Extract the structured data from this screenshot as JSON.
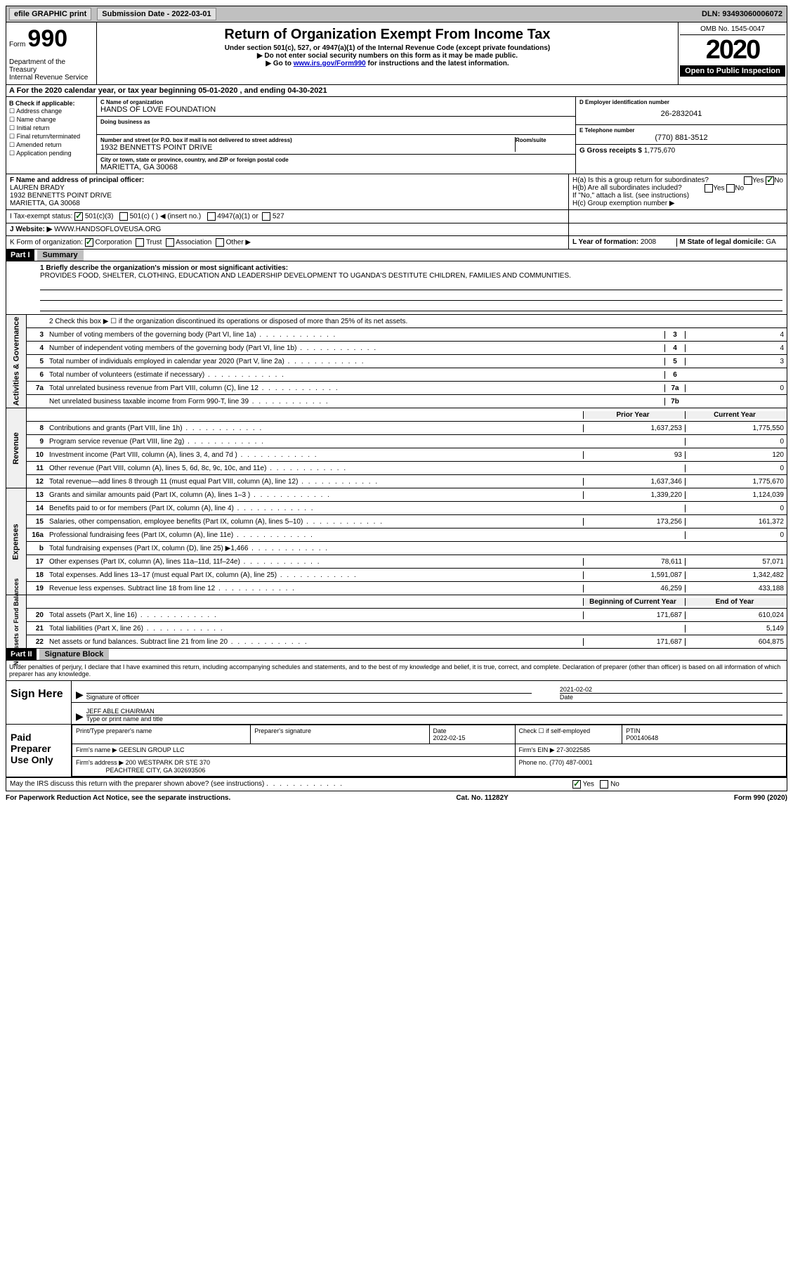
{
  "topbar": {
    "efile": "efile GRAPHIC print",
    "submission_label": "Submission Date - 2022-03-01",
    "dln": "DLN: 93493060006072"
  },
  "header": {
    "form_prefix": "Form",
    "form_number": "990",
    "dept": "Department of the Treasury\nInternal Revenue Service",
    "title": "Return of Organization Exempt From Income Tax",
    "sub1": "Under section 501(c), 527, or 4947(a)(1) of the Internal Revenue Code (except private foundations)",
    "sub2": "▶ Do not enter social security numbers on this form as it may be made public.",
    "sub3_pre": "▶ Go to ",
    "sub3_link": "www.irs.gov/Form990",
    "sub3_post": " for instructions and the latest information.",
    "omb": "OMB No. 1545-0047",
    "year": "2020",
    "open_inspect": "Open to Public Inspection"
  },
  "tax_year": "A For the 2020 calendar year, or tax year beginning 05-01-2020    , and ending 04-30-2021",
  "box_b": {
    "label": "B Check if applicable:",
    "items": [
      "Address change",
      "Name change",
      "Initial return",
      "Final return/terminated",
      "Amended return",
      "Application pending"
    ]
  },
  "c": {
    "label": "C Name of organization",
    "name": "HANDS OF LOVE FOUNDATION",
    "dba_label": "Doing business as",
    "addr_label": "Number and street (or P.O. box if mail is not delivered to street address)",
    "room_label": "Room/suite",
    "addr": "1932 BENNETTS POINT DRIVE",
    "city_label": "City or town, state or province, country, and ZIP or foreign postal code",
    "city": "MARIETTA, GA  30068"
  },
  "d": {
    "label": "D Employer identification number",
    "ein": "26-2832041"
  },
  "e": {
    "label": "E Telephone number",
    "phone": "(770) 881-3512"
  },
  "g": {
    "label": "G Gross receipts $",
    "value": "1,775,670"
  },
  "f": {
    "label": "F Name and address of principal officer:",
    "name": "LAUREN BRADY",
    "addr1": "1932 BENNETTS POINT DRIVE",
    "addr2": "MARIETTA, GA  30068"
  },
  "h": {
    "a": "H(a)  Is this a group return for subordinates?",
    "b": "H(b)  Are all subordinates included?",
    "b_note": "If \"No,\" attach a list. (see instructions)",
    "c": "H(c)  Group exemption number ▶",
    "yes": "Yes",
    "no": "No"
  },
  "i": {
    "label": "I   Tax-exempt status:",
    "opts": [
      "501(c)(3)",
      "501(c) (   ) ◀ (insert no.)",
      "4947(a)(1) or",
      "527"
    ]
  },
  "j": {
    "label": "J   Website: ▶",
    "value": "WWW.HANDSOFLOVEUSA.ORG"
  },
  "k": {
    "label": "K Form of organization:",
    "opts": [
      "Corporation",
      "Trust",
      "Association",
      "Other ▶"
    ]
  },
  "l": {
    "label": "L Year of formation:",
    "value": "2008"
  },
  "m": {
    "label": "M State of legal domicile:",
    "value": "GA"
  },
  "part1": {
    "tag": "Part I",
    "title": "Summary"
  },
  "mission": {
    "label": "1  Briefly describe the organization's mission or most significant activities:",
    "text": "PROVIDES FOOD, SHELTER, CLOTHING, EDUCATION AND LEADERSHIP DEVELOPMENT TO UGANDA'S DESTITUTE CHILDREN, FAMILIES AND COMMUNITIES."
  },
  "governance": {
    "vtab": "Activities & Governance",
    "line2": "2   Check this box ▶ ☐  if the organization discontinued its operations or disposed of more than 25% of its net assets.",
    "rows": [
      {
        "n": "3",
        "d": "Number of voting members of the governing body (Part VI, line 1a)",
        "box": "3",
        "v": "4"
      },
      {
        "n": "4",
        "d": "Number of independent voting members of the governing body (Part VI, line 1b)",
        "box": "4",
        "v": "4"
      },
      {
        "n": "5",
        "d": "Total number of individuals employed in calendar year 2020 (Part V, line 2a)",
        "box": "5",
        "v": "3"
      },
      {
        "n": "6",
        "d": "Total number of volunteers (estimate if necessary)",
        "box": "6",
        "v": ""
      },
      {
        "n": "7a",
        "d": "Total unrelated business revenue from Part VIII, column (C), line 12",
        "box": "7a",
        "v": "0"
      },
      {
        "n": "",
        "d": "Net unrelated business taxable income from Form 990-T, line 39",
        "box": "7b",
        "v": ""
      }
    ]
  },
  "revenue": {
    "vtab": "Revenue",
    "header_prior": "Prior Year",
    "header_curr": "Current Year",
    "rows": [
      {
        "n": "8",
        "d": "Contributions and grants (Part VIII, line 1h)",
        "p": "1,637,253",
        "c": "1,775,550"
      },
      {
        "n": "9",
        "d": "Program service revenue (Part VIII, line 2g)",
        "p": "",
        "c": "0"
      },
      {
        "n": "10",
        "d": "Investment income (Part VIII, column (A), lines 3, 4, and 7d )",
        "p": "93",
        "c": "120"
      },
      {
        "n": "11",
        "d": "Other revenue (Part VIII, column (A), lines 5, 6d, 8c, 9c, 10c, and 11e)",
        "p": "",
        "c": "0"
      },
      {
        "n": "12",
        "d": "Total revenue—add lines 8 through 11 (must equal Part VIII, column (A), line 12)",
        "p": "1,637,346",
        "c": "1,775,670"
      }
    ]
  },
  "expenses": {
    "vtab": "Expenses",
    "rows": [
      {
        "n": "13",
        "d": "Grants and similar amounts paid (Part IX, column (A), lines 1–3 )",
        "p": "1,339,220",
        "c": "1,124,039"
      },
      {
        "n": "14",
        "d": "Benefits paid to or for members (Part IX, column (A), line 4)",
        "p": "",
        "c": "0"
      },
      {
        "n": "15",
        "d": "Salaries, other compensation, employee benefits (Part IX, column (A), lines 5–10)",
        "p": "173,256",
        "c": "161,372"
      },
      {
        "n": "16a",
        "d": "Professional fundraising fees (Part IX, column (A), line 11e)",
        "p": "",
        "c": "0"
      },
      {
        "n": "b",
        "d": "Total fundraising expenses (Part IX, column (D), line 25) ▶1,466",
        "p": "shaded",
        "c": "shaded"
      },
      {
        "n": "17",
        "d": "Other expenses (Part IX, column (A), lines 11a–11d, 11f–24e)",
        "p": "78,611",
        "c": "57,071"
      },
      {
        "n": "18",
        "d": "Total expenses. Add lines 13–17 (must equal Part IX, column (A), line 25)",
        "p": "1,591,087",
        "c": "1,342,482"
      },
      {
        "n": "19",
        "d": "Revenue less expenses. Subtract line 18 from line 12",
        "p": "46,259",
        "c": "433,188"
      }
    ]
  },
  "netassets": {
    "vtab": "Net Assets or Fund Balances",
    "header_prior": "Beginning of Current Year",
    "header_curr": "End of Year",
    "rows": [
      {
        "n": "20",
        "d": "Total assets (Part X, line 16)",
        "p": "171,687",
        "c": "610,024"
      },
      {
        "n": "21",
        "d": "Total liabilities (Part X, line 26)",
        "p": "",
        "c": "5,149"
      },
      {
        "n": "22",
        "d": "Net assets or fund balances. Subtract line 21 from line 20",
        "p": "171,687",
        "c": "604,875"
      }
    ]
  },
  "part2": {
    "tag": "Part II",
    "title": "Signature Block"
  },
  "sig_text": "Under penalties of perjury, I declare that I have examined this return, including accompanying schedules and statements, and to the best of my knowledge and belief, it is true, correct, and complete. Declaration of preparer (other than officer) is based on all information of which preparer has any knowledge.",
  "sign": {
    "label": "Sign Here",
    "sig_officer": "Signature of officer",
    "date": "2021-02-02",
    "date_label": "Date",
    "name": "JEFF ABLE CHAIRMAN",
    "name_label": "Type or print name and title"
  },
  "preparer": {
    "label": "Paid Preparer Use Only",
    "h_name": "Print/Type preparer's name",
    "h_sig": "Preparer's signature",
    "h_date": "Date",
    "date": "2022-02-15",
    "h_check": "Check ☐ if self-employed",
    "h_ptin": "PTIN",
    "ptin": "P00140648",
    "firm_label": "Firm's name  ▶",
    "firm": "GEESLIN GROUP LLC",
    "ein_label": "Firm's EIN ▶",
    "ein": "27-3022585",
    "addr_label": "Firm's address ▶",
    "addr1": "200 WESTPARK DR STE 370",
    "addr2": "PEACHTREE CITY, GA  302693506",
    "phone_label": "Phone no.",
    "phone": "(770) 487-0001"
  },
  "discuss": {
    "text": "May the IRS discuss this return with the preparer shown above? (see instructions)",
    "yes": "Yes",
    "no": "No"
  },
  "footer": {
    "left": "For Paperwork Reduction Act Notice, see the separate instructions.",
    "mid": "Cat. No. 11282Y",
    "right": "Form 990 (2020)"
  }
}
